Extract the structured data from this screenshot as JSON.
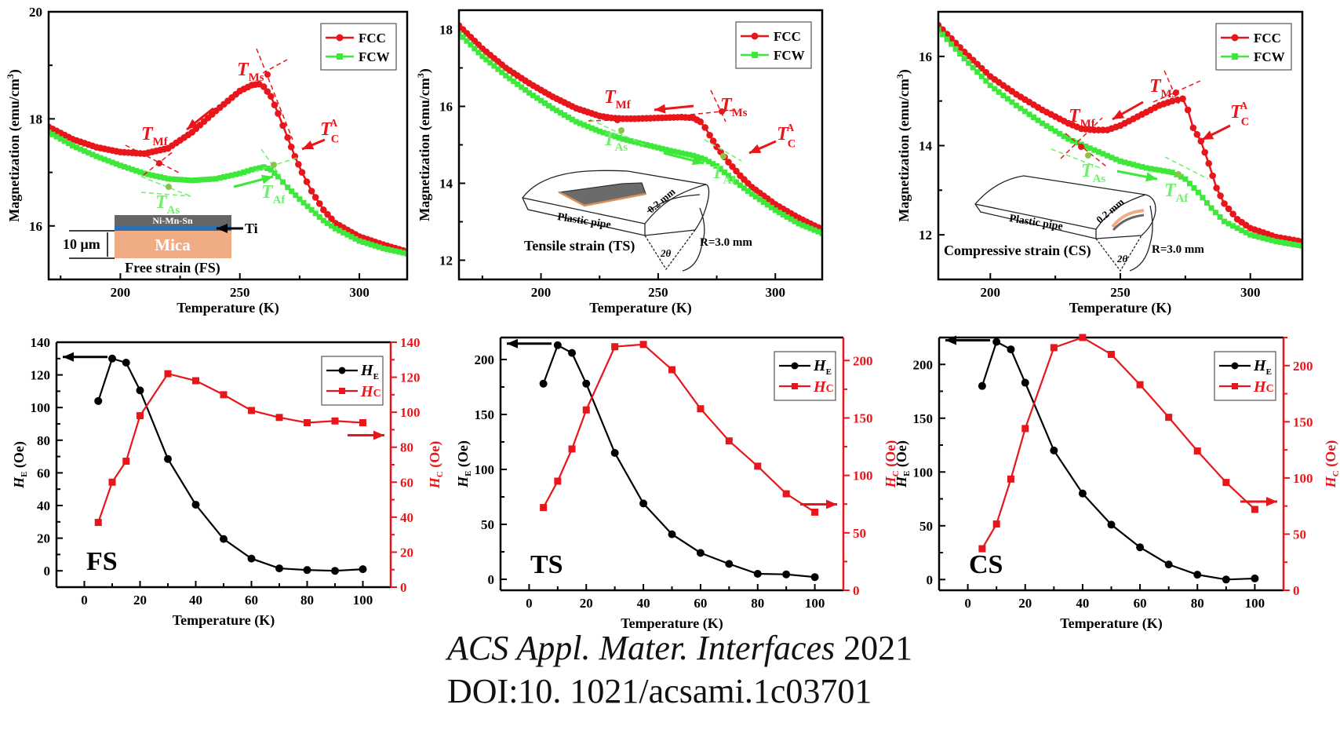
{
  "figure": {
    "citation_journal": "ACS Appl. Mater. Interfaces",
    "citation_year": "2021",
    "citation_doi": "DOI:10. 1021/acsami.1c03701"
  },
  "colors": {
    "fcc": "#e8161b",
    "fcw": "#3ee83a",
    "he": "#000000",
    "hc": "#e8161b"
  },
  "chart_data": [
    {
      "id": "FS-MT",
      "type": "line",
      "xlabel": "Temperature (K)",
      "ylabel": "Magnetization (emu/cm³)",
      "xlim": [
        170,
        320
      ],
      "ylim": [
        15.0,
        20.0
      ],
      "xticks": [
        200,
        250,
        300
      ],
      "yticks": [
        16,
        18,
        20
      ],
      "legend": {
        "position": "top-right",
        "entries": [
          "FCC",
          "FCW"
        ]
      },
      "annotations": {
        "TMf": "T_Mf",
        "TMs": "T_Ms",
        "TCA": "T_C^A",
        "TAs": "T_As",
        "TAf": "T_Af",
        "inset_label": "Free strain (FS)",
        "inset_layer_top": "Ni-Mn-Sn",
        "inset_layer_ti": "Ti",
        "inset_layer_substrate": "Mica",
        "inset_thickness": "10 μm"
      },
      "series": [
        {
          "name": "FCC",
          "x": [
            170,
            180,
            190,
            200,
            210,
            220,
            230,
            240,
            250,
            255,
            258,
            260,
            263,
            266,
            270,
            273,
            276,
            280,
            285,
            290,
            300,
            310,
            320
          ],
          "y": [
            17.85,
            17.62,
            17.47,
            17.38,
            17.35,
            17.45,
            17.75,
            18.15,
            18.52,
            18.63,
            18.65,
            18.6,
            18.42,
            18.1,
            17.65,
            17.3,
            17.0,
            16.65,
            16.3,
            16.05,
            15.8,
            15.65,
            15.52
          ]
        },
        {
          "name": "FCW",
          "x": [
            170,
            180,
            190,
            200,
            210,
            220,
            230,
            240,
            250,
            255,
            260,
            263,
            266,
            270,
            275,
            280,
            285,
            290,
            300,
            310,
            320
          ],
          "y": [
            17.75,
            17.5,
            17.3,
            17.13,
            16.98,
            16.88,
            16.85,
            16.88,
            16.98,
            17.05,
            17.1,
            17.05,
            16.92,
            16.72,
            16.5,
            16.3,
            16.1,
            15.95,
            15.72,
            15.58,
            15.48
          ]
        }
      ]
    },
    {
      "id": "TS-MT",
      "type": "line",
      "xlabel": "Temperature (K)",
      "ylabel": "Magnetization (emu/cm³)",
      "xlim": [
        165,
        320
      ],
      "ylim": [
        11.5,
        18.5
      ],
      "xticks": [
        200,
        250,
        300
      ],
      "yticks": [
        12,
        14,
        16,
        18
      ],
      "legend": {
        "position": "top-right",
        "entries": [
          "FCC",
          "FCW"
        ]
      },
      "annotations": {
        "TMf": "T_Mf",
        "TMs": "T_Ms",
        "TCA": "T_C^A",
        "TAs": "T_As",
        "TAf": "T_Af",
        "inset_label": "Tensile strain (TS)",
        "inset_pipe": "Plastic pipe",
        "inset_thickness": "0.2 mm",
        "inset_radius": "R=3.0 mm",
        "inset_angle": "2θ"
      },
      "series": [
        {
          "name": "FCC",
          "x": [
            165,
            175,
            185,
            195,
            205,
            215,
            225,
            230,
            235,
            240,
            250,
            260,
            265,
            268,
            270,
            272,
            275,
            280,
            285,
            290,
            300,
            310,
            320
          ],
          "y": [
            18.1,
            17.5,
            17.0,
            16.6,
            16.25,
            15.95,
            15.75,
            15.7,
            15.68,
            15.68,
            15.7,
            15.72,
            15.7,
            15.6,
            15.45,
            15.25,
            14.95,
            14.55,
            14.2,
            13.9,
            13.45,
            13.1,
            12.8
          ]
        },
        {
          "name": "FCW",
          "x": [
            165,
            175,
            185,
            195,
            205,
            215,
            225,
            235,
            245,
            255,
            265,
            270,
            275,
            280,
            285,
            290,
            300,
            310,
            320
          ],
          "y": [
            17.9,
            17.3,
            16.8,
            16.35,
            15.95,
            15.6,
            15.35,
            15.15,
            15.0,
            14.85,
            14.72,
            14.62,
            14.45,
            14.2,
            13.95,
            13.72,
            13.3,
            12.95,
            12.7
          ]
        }
      ]
    },
    {
      "id": "CS-MT",
      "type": "line",
      "xlabel": "Temperature (K)",
      "ylabel": "Magnetization (emu/cm³)",
      "xlim": [
        180,
        320
      ],
      "ylim": [
        11.0,
        17.0
      ],
      "xticks": [
        200,
        250,
        300
      ],
      "yticks": [
        12,
        14,
        16
      ],
      "legend": {
        "position": "top-right",
        "entries": [
          "FCC",
          "FCW"
        ]
      },
      "annotations": {
        "TMf": "T_Mf",
        "TMs": "T_Ms",
        "TCA": "T_C^A",
        "TAs": "T_As",
        "TAf": "T_Af",
        "inset_label": "Compressive strain (CS)",
        "inset_pipe": "Plastic pipe",
        "inset_thickness": "0.2 mm",
        "inset_radius": "R=3.0 mm",
        "inset_angle": "2θ"
      },
      "series": [
        {
          "name": "FCC",
          "x": [
            180,
            190,
            200,
            210,
            220,
            230,
            235,
            240,
            245,
            250,
            255,
            260,
            265,
            270,
            274,
            276,
            278,
            281,
            284,
            287,
            290,
            295,
            300,
            310,
            320
          ],
          "y": [
            16.7,
            16.1,
            15.55,
            15.15,
            14.8,
            14.5,
            14.38,
            14.35,
            14.35,
            14.45,
            14.6,
            14.75,
            14.9,
            15.0,
            15.05,
            14.8,
            14.4,
            14.1,
            13.6,
            13.05,
            12.7,
            12.35,
            12.15,
            11.95,
            11.85
          ]
        },
        {
          "name": "FCW",
          "x": [
            180,
            190,
            200,
            210,
            220,
            230,
            240,
            250,
            260,
            270,
            275,
            280,
            285,
            290,
            300,
            310,
            320
          ],
          "y": [
            16.6,
            15.95,
            15.35,
            14.9,
            14.5,
            14.15,
            13.9,
            13.65,
            13.5,
            13.4,
            13.25,
            12.95,
            12.6,
            12.3,
            12.0,
            11.85,
            11.75
          ]
        }
      ]
    },
    {
      "id": "FS-exchange",
      "type": "line",
      "panel_label": "FS",
      "xlabel": "Temperature (K)",
      "ylabel_left": "H_E (Oe)",
      "ylabel_right": "H_C (Oe)",
      "xlim": [
        -10,
        110
      ],
      "ylim_left": [
        -10,
        140
      ],
      "ylim_right": [
        0,
        140
      ],
      "xticks": [
        0,
        20,
        40,
        60,
        80,
        100
      ],
      "yticks_left": [
        0,
        20,
        40,
        60,
        80,
        100,
        120,
        140
      ],
      "yticks_right": [
        0,
        20,
        40,
        60,
        80,
        100,
        120,
        140
      ],
      "legend": {
        "position": "top-right",
        "entries": [
          "H_E",
          "H_C"
        ]
      },
      "series": [
        {
          "name": "H_E",
          "axis": "left",
          "x": [
            5,
            10,
            15,
            20,
            30,
            40,
            50,
            60,
            70,
            80,
            90,
            100
          ],
          "y": [
            104,
            130,
            127.5,
            110.5,
            68.5,
            40.5,
            19.5,
            7.5,
            1.5,
            0.5,
            0,
            1
          ]
        },
        {
          "name": "H_C",
          "axis": "right",
          "x": [
            5,
            10,
            15,
            20,
            30,
            40,
            50,
            60,
            70,
            80,
            90,
            100
          ],
          "y": [
            37,
            60,
            72,
            98,
            122,
            118,
            110,
            101,
            97,
            94,
            95,
            94
          ]
        }
      ]
    },
    {
      "id": "TS-exchange",
      "type": "line",
      "panel_label": "TS",
      "xlabel": "Temperature (K)",
      "ylabel_left": "H_E (Oe)",
      "ylabel_right": "H_C (Oe)",
      "xlim": [
        -10,
        110
      ],
      "ylim_left": [
        -10,
        220
      ],
      "ylim_right": [
        0,
        220
      ],
      "xticks": [
        0,
        20,
        40,
        60,
        80,
        100
      ],
      "yticks_left": [
        0,
        50,
        100,
        150,
        200
      ],
      "yticks_right": [
        50,
        100,
        150,
        200
      ],
      "legend": {
        "position": "top-right",
        "entries": [
          "H_E",
          "H_C"
        ]
      },
      "series": [
        {
          "name": "H_E",
          "axis": "left",
          "x": [
            5,
            10,
            15,
            20,
            30,
            40,
            50,
            60,
            70,
            80,
            90,
            100
          ],
          "y": [
            178,
            213,
            206,
            178,
            115,
            69,
            41,
            24,
            14,
            5,
            4.5,
            2
          ]
        },
        {
          "name": "H_C",
          "axis": "right",
          "x": [
            5,
            10,
            15,
            20,
            30,
            40,
            50,
            60,
            70,
            80,
            90,
            100
          ],
          "y": [
            72,
            95,
            123,
            157,
            212,
            214,
            192,
            158,
            130,
            108,
            84,
            68
          ]
        }
      ]
    },
    {
      "id": "CS-exchange",
      "type": "line",
      "panel_label": "CS",
      "xlabel": "Temperature (K)",
      "ylabel_left": "H_E (Oe)",
      "ylabel_right": "H_C (Oe)",
      "xlim": [
        -10,
        110
      ],
      "ylim_left": [
        -10,
        225
      ],
      "ylim_right": [
        0,
        225
      ],
      "xticks": [
        0,
        20,
        40,
        60,
        80,
        100
      ],
      "yticks_left": [
        0,
        50,
        100,
        150,
        200
      ],
      "yticks_right": [
        50,
        100,
        150,
        200
      ],
      "legend": {
        "position": "top-right",
        "entries": [
          "H_E",
          "H_C"
        ]
      },
      "series": [
        {
          "name": "H_E",
          "axis": "left",
          "x": [
            5,
            10,
            15,
            20,
            30,
            40,
            50,
            60,
            70,
            80,
            90,
            100
          ],
          "y": [
            180,
            221,
            214,
            183,
            120,
            80,
            51,
            30,
            14,
            4.5,
            0,
            1
          ]
        },
        {
          "name": "H_C",
          "axis": "right",
          "x": [
            5,
            10,
            15,
            20,
            30,
            40,
            50,
            60,
            70,
            80,
            90,
            100
          ],
          "y": [
            37,
            59,
            99,
            144,
            216,
            225,
            210,
            183,
            154,
            124,
            96,
            72
          ]
        }
      ]
    }
  ]
}
